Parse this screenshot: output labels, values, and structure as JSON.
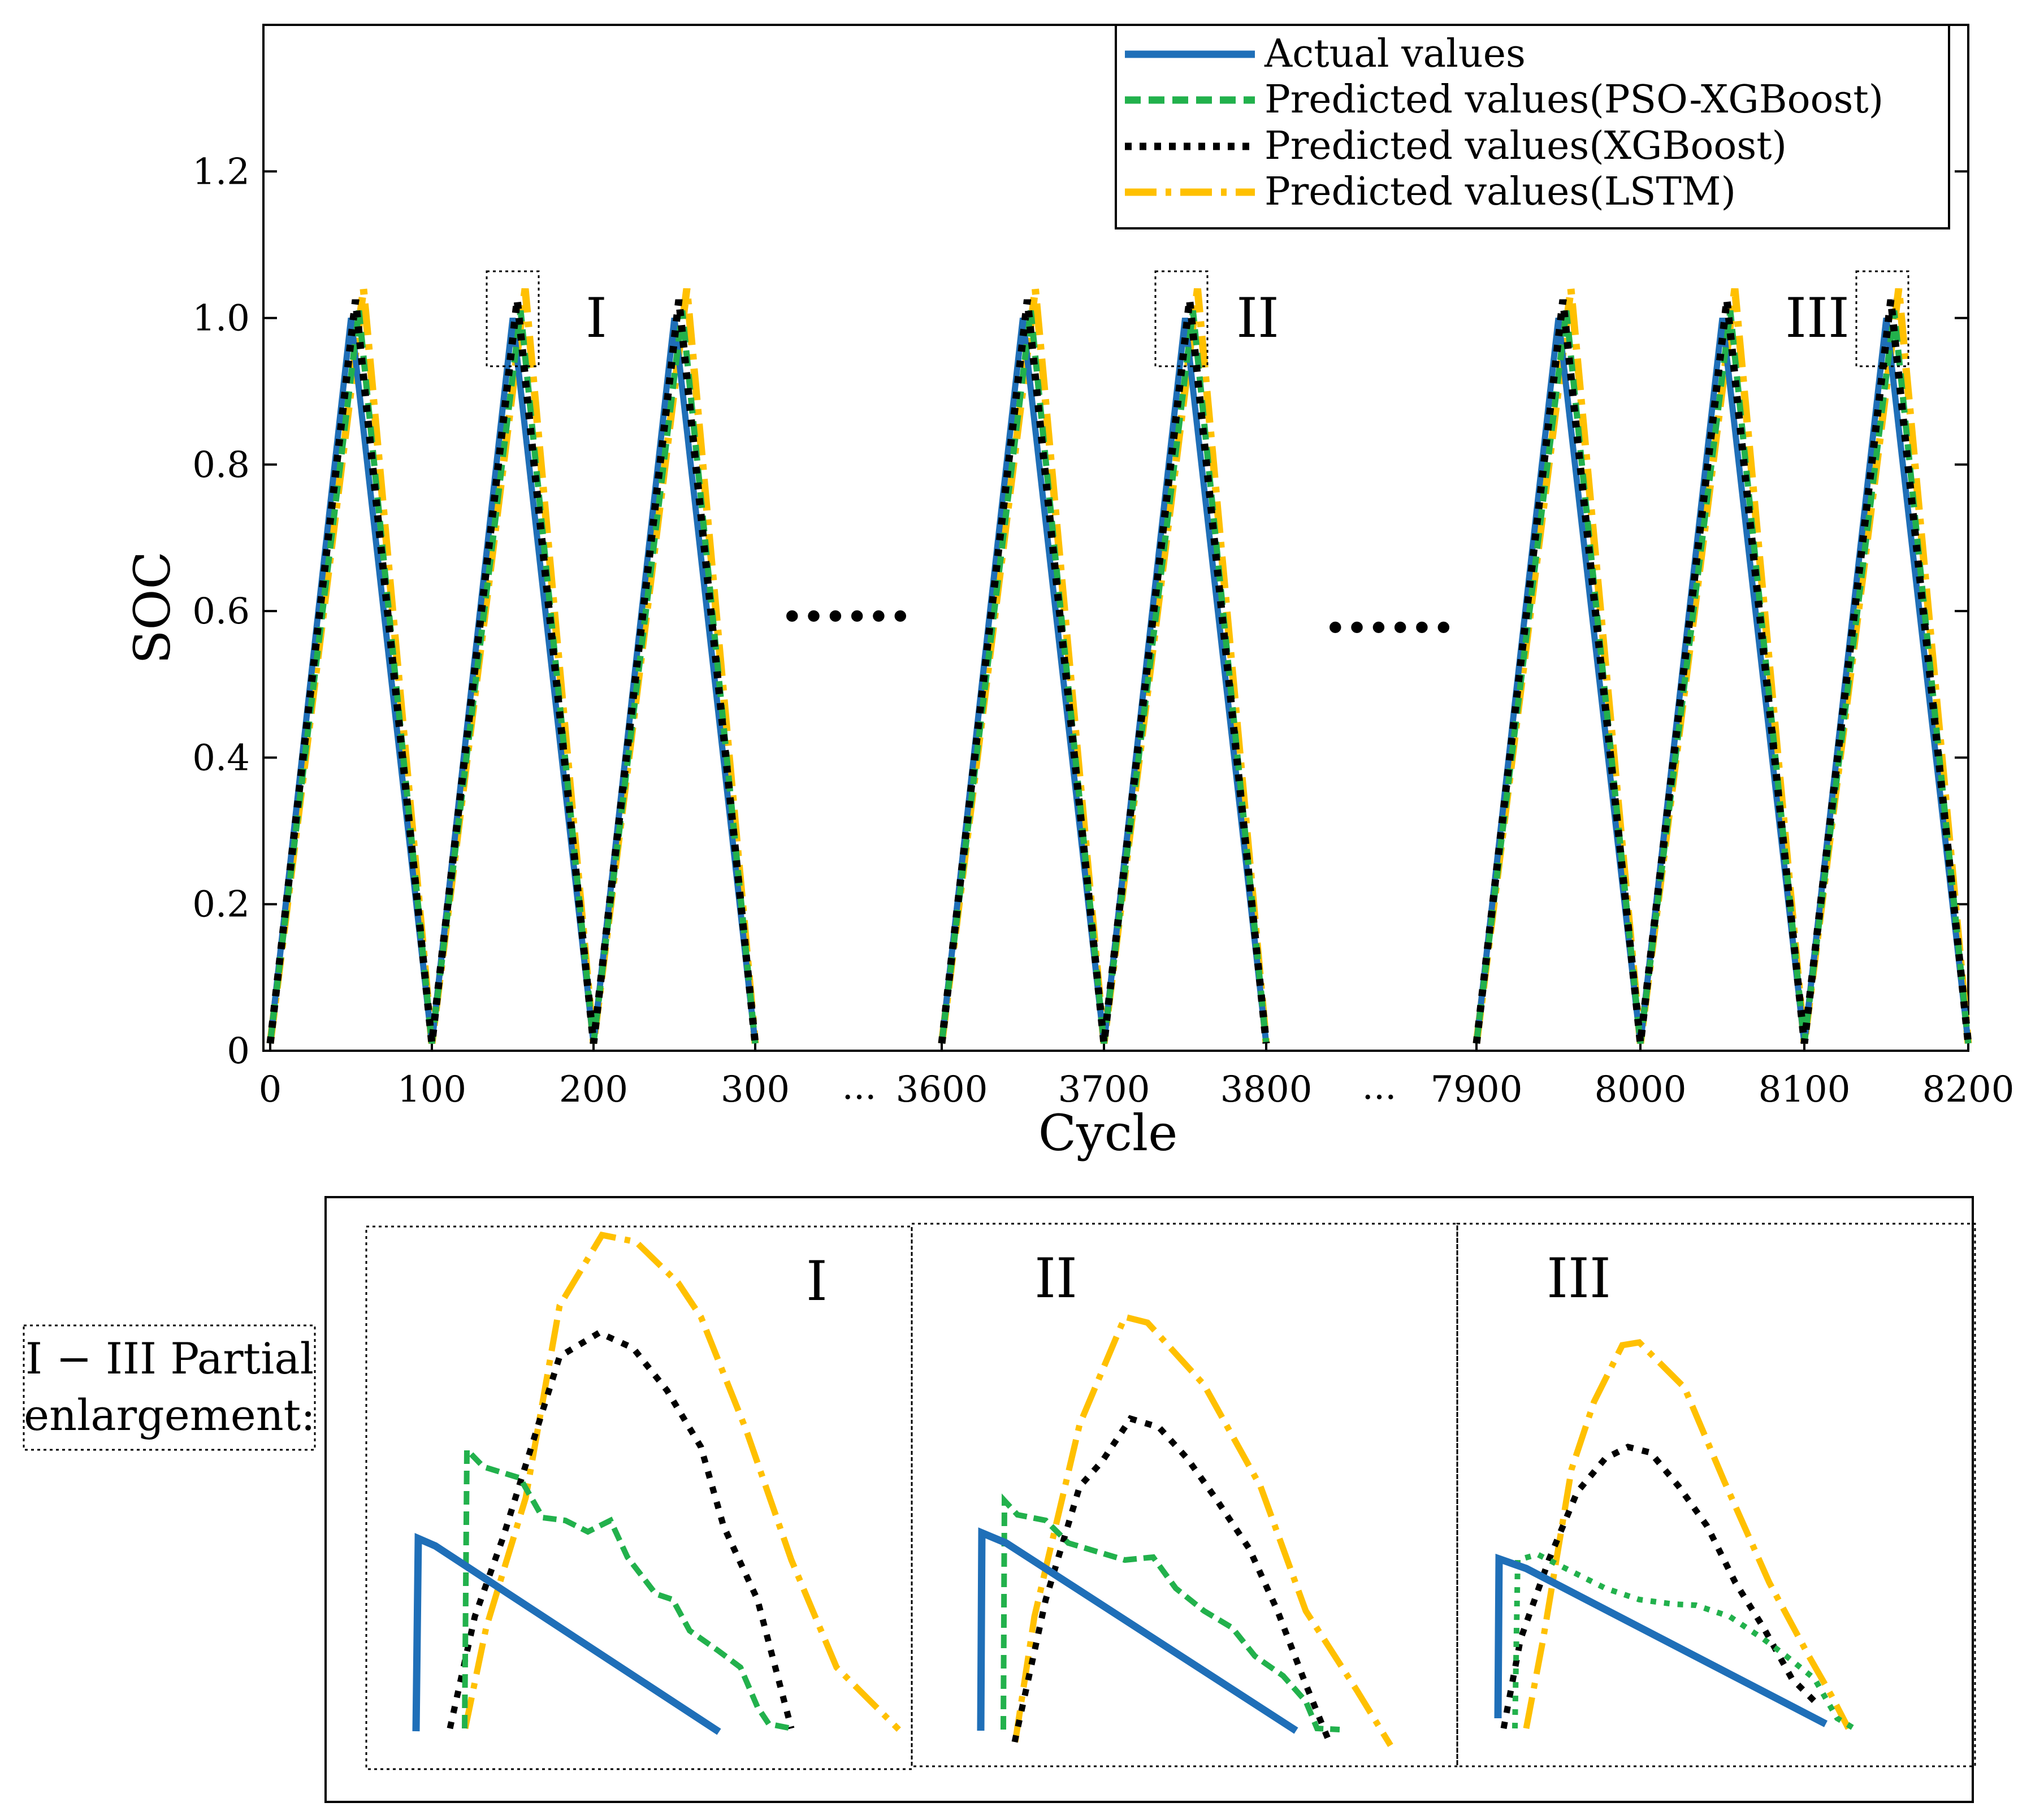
{
  "chart_data": {
    "type": "line",
    "ylabel": "SOC",
    "xlabel": "Cycle",
    "ylim": [
      0,
      1.4
    ],
    "yticks": [
      0,
      0.2,
      0.4,
      0.6,
      0.8,
      1.0,
      1.2
    ],
    "ytick_labels": [
      "0",
      "0.2",
      "0.4",
      "0.6",
      "0.8",
      "1.0",
      "1.2"
    ],
    "legend": {
      "position": "top-right",
      "entries": [
        {
          "key": "actual",
          "label": "Actual values",
          "color": "#1f6fb8",
          "style": "solid"
        },
        {
          "key": "pso",
          "label": "Predicted values(PSO-XGBoost)",
          "color": "#22b14c",
          "style": "dashed"
        },
        {
          "key": "xgb",
          "label": "Predicted values(XGBoost)",
          "color": "#000000",
          "style": "dotted"
        },
        {
          "key": "lstm",
          "label": "Predicted values(LSTM)",
          "color": "#ffc000",
          "style": "dashdot"
        }
      ]
    },
    "segments": [
      {
        "tick_labels": [
          "0",
          "100",
          "200",
          "300"
        ],
        "x": [
          0,
          50,
          100,
          150,
          200,
          250,
          300
        ],
        "actual": [
          0.01,
          1.0,
          0.01,
          1.0,
          0.01,
          1.0,
          0.01
        ]
      },
      {
        "tick_labels": [
          "3600",
          "3700",
          "3800"
        ],
        "x": [
          3600,
          3650,
          3700,
          3750,
          3800
        ],
        "actual": [
          0.01,
          1.0,
          0.01,
          1.0,
          0.01
        ]
      },
      {
        "tick_labels": [
          "7900",
          "8000",
          "8100",
          "8200"
        ],
        "x": [
          7900,
          7950,
          8000,
          8050,
          8100,
          8150,
          8200
        ],
        "actual": [
          0.01,
          1.0,
          0.01,
          1.0,
          0.01,
          1.0,
          0.01
        ]
      }
    ],
    "peak_overshoot": {
      "actual": 0.0,
      "pso": 0.01,
      "xgb": 0.025,
      "lstm": 0.04
    },
    "axis_break_label": "...",
    "gap_marker": "······",
    "zoom_regions": [
      "I",
      "II",
      "III"
    ]
  },
  "inset": {
    "caption_line1": "I − III Partial",
    "caption_line2": "enlargement:",
    "panels": [
      "I",
      "II",
      "III"
    ]
  },
  "series_colors": {
    "actual": "#1f6fb8",
    "pso": "#22b14c",
    "xgb": "#000000",
    "lstm": "#ffc000"
  }
}
